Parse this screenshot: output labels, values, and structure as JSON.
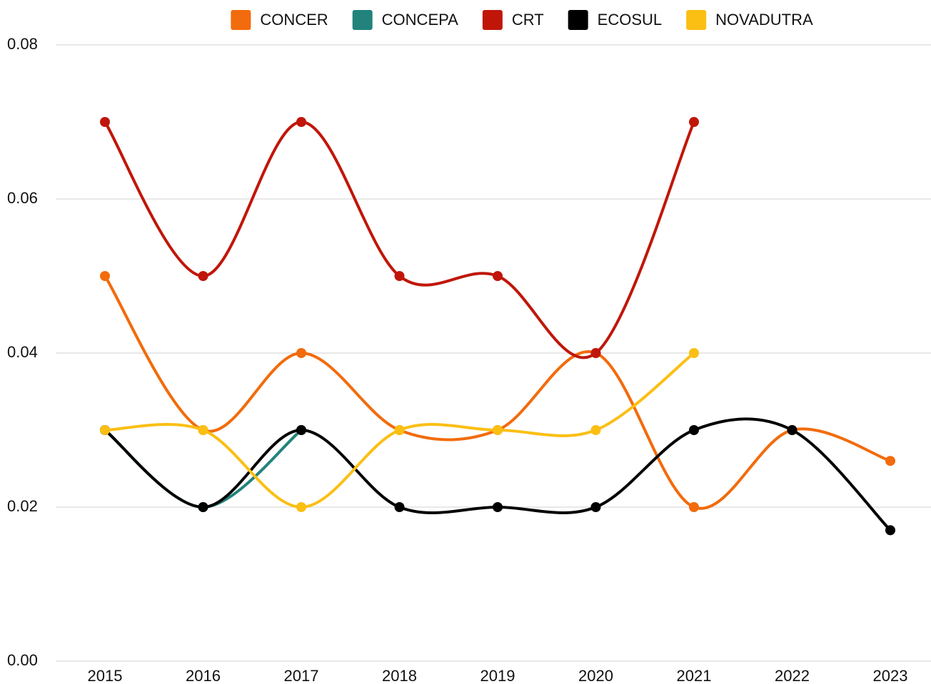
{
  "chart_data": {
    "type": "line",
    "categories": [
      "2015",
      "2016",
      "2017",
      "2018",
      "2019",
      "2020",
      "2021",
      "2022",
      "2023"
    ],
    "series": [
      {
        "name": "CONCER",
        "color": "#f26b0c",
        "values": [
          0.05,
          0.03,
          0.04,
          0.03,
          0.03,
          0.04,
          0.02,
          0.03,
          0.026
        ]
      },
      {
        "name": "CONCEPA",
        "color": "#22837c",
        "values": [
          0.03,
          0.02,
          0.03,
          null,
          null,
          null,
          null,
          null,
          null
        ]
      },
      {
        "name": "CRT",
        "color": "#c0160a",
        "values": [
          0.07,
          0.05,
          0.07,
          0.05,
          0.05,
          0.04,
          0.07,
          null,
          null
        ]
      },
      {
        "name": "ECOSUL",
        "color": "#000000",
        "values": [
          0.03,
          0.02,
          0.03,
          0.02,
          0.02,
          0.02,
          0.03,
          0.03,
          0.017
        ]
      },
      {
        "name": "NOVADUTRA",
        "color": "#fbbf14",
        "values": [
          0.03,
          0.03,
          0.02,
          0.03,
          0.03,
          0.03,
          0.04,
          null,
          null
        ]
      }
    ],
    "ylim": [
      0,
      0.08
    ],
    "yticks": [
      {
        "value": 0,
        "label": "0.00"
      },
      0.02,
      0.04,
      0.06,
      0.08
    ],
    "grid": true,
    "legend": "top"
  }
}
